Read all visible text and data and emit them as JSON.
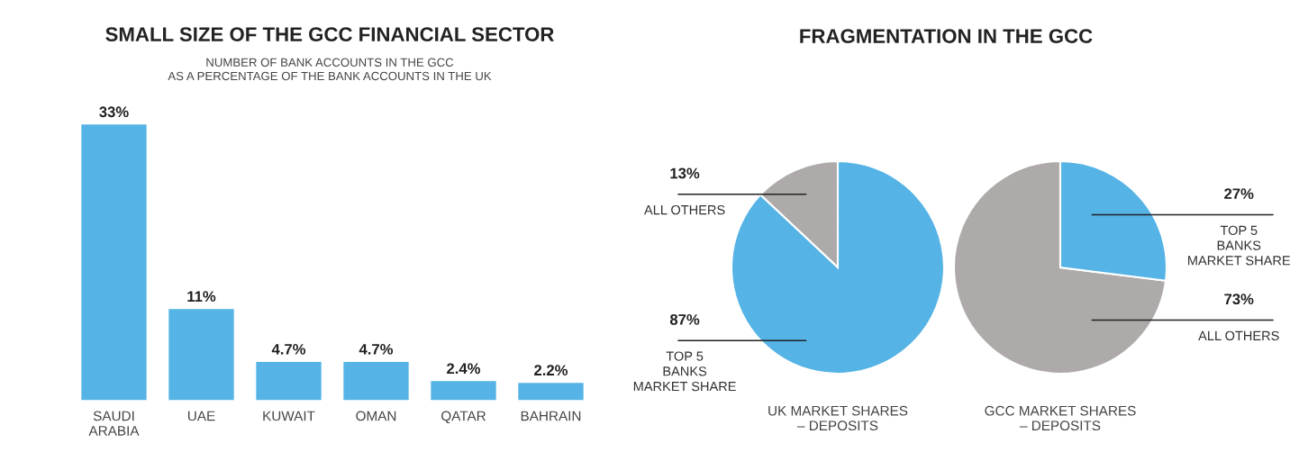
{
  "chart_data": [
    {
      "type": "bar",
      "title": "SMALL SIZE OF THE GCC FINANCIAL SECTOR",
      "subtitle": "NUMBER OF BANK ACCOUNTS IN THE GCC\nAS A PERCENTAGE OF THE BANK ACCOUNTS IN THE UK",
      "categories": [
        "SAUDI\nARABIA",
        "UAE",
        "KUWAIT",
        "OMAN",
        "QATAR",
        "BAHRAIN"
      ],
      "values": [
        33,
        11,
        4.7,
        4.7,
        2.4,
        2.2
      ],
      "color": "#55b3e6",
      "value_labels": [
        "33%",
        "11%",
        "4.7%",
        "4.7%",
        "2.4%",
        "2.2%"
      ]
    },
    {
      "type": "pie",
      "title": "FRAGMENTATION IN THE GCC",
      "xlabel": "UK MARKET SHARES\n– DEPOSITS",
      "categories": [
        "ALL OTHERS",
        "TOP 5\nBANKS\nMARKET SHARE"
      ],
      "values": [
        13,
        87
      ],
      "colors": [
        "#aeaaa9",
        "#55b3e6"
      ],
      "value_labels": [
        "13%",
        "87%"
      ]
    },
    {
      "type": "pie",
      "xlabel": "GCC MARKET SHARES\n– DEPOSITS",
      "categories": [
        "ALL OTHERS",
        "TOP 5\nBANKS\nMARKET SHARE"
      ],
      "values": [
        73,
        27
      ],
      "colors": [
        "#aeaaa9",
        "#55b3e6"
      ],
      "value_labels": [
        "73%",
        "27%"
      ]
    }
  ]
}
